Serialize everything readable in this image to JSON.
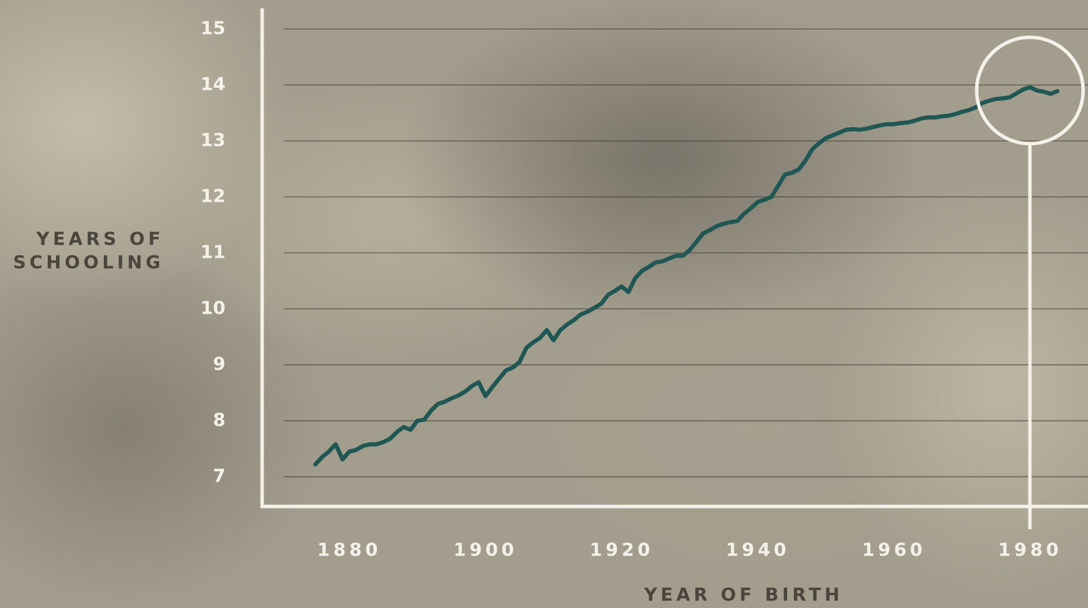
{
  "chart_data": {
    "type": "line",
    "y_label": [
      "YEARS OF",
      "SCHOOLING"
    ],
    "x_label": "YEAR OF BIRTH",
    "x": [
      1875,
      1876,
      1877,
      1878,
      1879,
      1880,
      1881,
      1882,
      1883,
      1884,
      1885,
      1886,
      1887,
      1888,
      1889,
      1890,
      1891,
      1892,
      1893,
      1894,
      1895,
      1896,
      1897,
      1898,
      1899,
      1900,
      1901,
      1902,
      1903,
      1904,
      1905,
      1906,
      1907,
      1908,
      1909,
      1910,
      1911,
      1912,
      1913,
      1914,
      1915,
      1916,
      1917,
      1918,
      1919,
      1920,
      1921,
      1922,
      1923,
      1924,
      1925,
      1926,
      1927,
      1928,
      1929,
      1930,
      1931,
      1932,
      1933,
      1934,
      1935,
      1936,
      1937,
      1938,
      1939,
      1940,
      1941,
      1942,
      1943,
      1944,
      1945,
      1946,
      1947,
      1948,
      1949,
      1950,
      1951,
      1952,
      1953,
      1954,
      1955,
      1956,
      1957,
      1958,
      1959,
      1960,
      1961,
      1962,
      1963,
      1964,
      1965,
      1966,
      1967,
      1968,
      1969,
      1970,
      1971,
      1972,
      1973,
      1974,
      1975,
      1976,
      1977,
      1978,
      1979,
      1980,
      1981,
      1982,
      1983,
      1984
    ],
    "values": [
      7.22,
      7.35,
      7.45,
      7.58,
      7.31,
      7.45,
      7.48,
      7.55,
      7.58,
      7.58,
      7.62,
      7.68,
      7.8,
      7.89,
      7.84,
      8.0,
      8.02,
      8.18,
      8.3,
      8.34,
      8.4,
      8.45,
      8.52,
      8.62,
      8.69,
      8.44,
      8.6,
      8.75,
      8.9,
      8.95,
      9.05,
      9.3,
      9.4,
      9.48,
      9.62,
      9.44,
      9.62,
      9.72,
      9.8,
      9.9,
      9.95,
      10.02,
      10.09,
      10.25,
      10.32,
      10.4,
      10.3,
      10.55,
      10.68,
      10.75,
      10.83,
      10.85,
      10.9,
      10.95,
      10.95,
      11.05,
      11.2,
      11.35,
      11.41,
      11.48,
      11.52,
      11.55,
      11.57,
      11.7,
      11.8,
      11.91,
      11.95,
      12.0,
      12.2,
      12.4,
      12.43,
      12.49,
      12.65,
      12.85,
      12.96,
      13.05,
      13.1,
      13.15,
      13.2,
      13.21,
      13.2,
      13.22,
      13.25,
      13.28,
      13.3,
      13.3,
      13.32,
      13.33,
      13.36,
      13.4,
      13.42,
      13.42,
      13.44,
      13.45,
      13.48,
      13.52,
      13.55,
      13.6,
      13.68,
      13.72,
      13.75,
      13.76,
      13.78,
      13.85,
      13.92,
      13.96,
      13.9,
      13.88,
      13.84,
      13.89
    ],
    "color": "#1f5755",
    "xlim": [
      1867.2,
      1988.5
    ],
    "xticks": [
      1880,
      1900,
      1920,
      1940,
      1960,
      1980
    ],
    "ylim": [
      6.47,
      15.37
    ],
    "yticks": [
      7,
      8,
      9,
      10,
      11,
      12,
      13,
      14,
      15
    ],
    "grid": true
  }
}
